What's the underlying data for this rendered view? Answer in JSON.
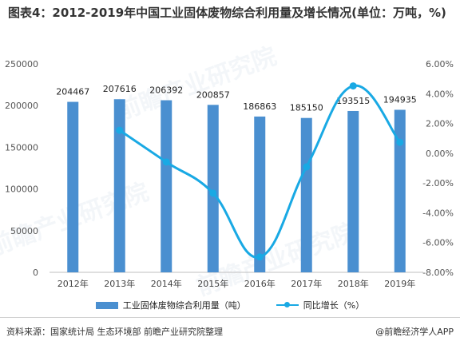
{
  "title": "图表4：2012-2019年中国工业固体废物综合利用量及增长情况(单位：万吨，%)",
  "footer": {
    "source": "资料来源：国家统计局 生态环境部 前瞻产业研究院整理",
    "brand": "@前瞻经济学人APP"
  },
  "watermark": "前瞻产业研究院",
  "colors": {
    "bar": "#4a8fd0",
    "line": "#19a9e4"
  },
  "chart_data": {
    "type": "bar",
    "categories": [
      "2012年",
      "2013年",
      "2014年",
      "2015年",
      "2016年",
      "2017年",
      "2018年",
      "2019年"
    ],
    "series": [
      {
        "name": "工业固体废物综合利用量（吨）",
        "type": "bar",
        "axis": "left",
        "values": [
          204467,
          207616,
          206392,
          200857,
          186863,
          185150,
          193515,
          194935
        ],
        "labels": [
          "204467",
          "207616",
          "206392",
          "200857",
          "186863",
          "185150",
          "193515",
          "194935"
        ]
      },
      {
        "name": "同比增长（%）",
        "type": "line",
        "axis": "right",
        "values": [
          null,
          1.54,
          -0.59,
          -2.68,
          -6.97,
          -0.92,
          4.52,
          0.73
        ]
      }
    ],
    "yaxis_left": {
      "min": 0,
      "max": 250000,
      "ticks": [
        "0",
        "50000",
        "100000",
        "150000",
        "200000",
        "250000"
      ]
    },
    "yaxis_right": {
      "min": -8,
      "max": 6,
      "ticks": [
        "-8.00%",
        "-6.00%",
        "-4.00%",
        "-2.00%",
        "0.00%",
        "2.00%",
        "4.00%",
        "6.00%"
      ]
    },
    "legend_position": "bottom",
    "grid": false
  }
}
